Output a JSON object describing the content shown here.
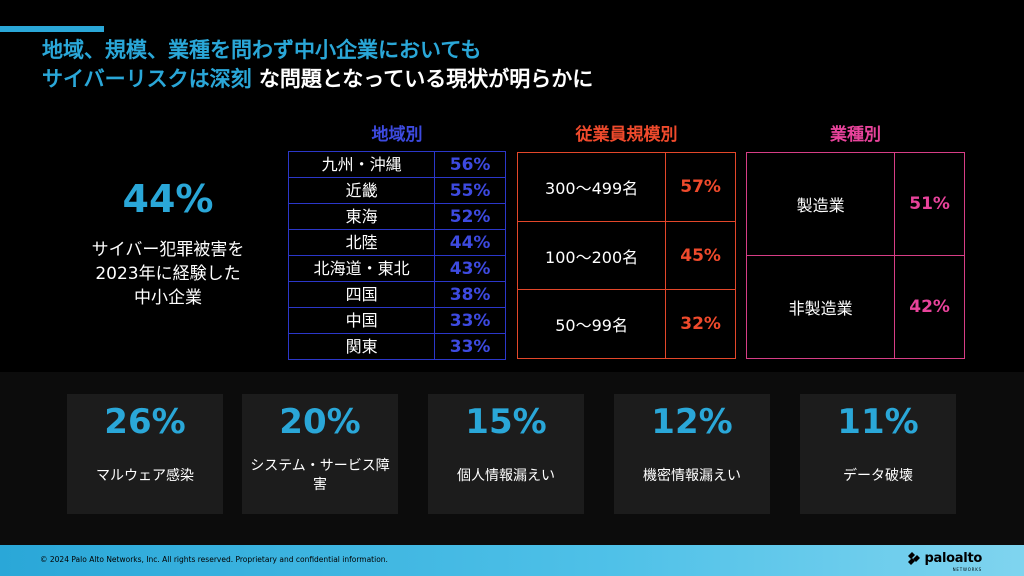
{
  "title": {
    "line1": "地域、規模、業種を問わず中小企業においても",
    "line2_highlight": "サイバーリスクは深刻",
    "line2_rest": " な問題となっている現状が明らかに"
  },
  "headline_stat": {
    "value": "44%",
    "desc1": "サイバー犯罪被害を",
    "desc2": "2023年に経験した",
    "desc3": "中小企業"
  },
  "region": {
    "title": "地域別",
    "rows": [
      {
        "name": "九州・沖縄",
        "value": "56%"
      },
      {
        "name": "近畿",
        "value": "55%"
      },
      {
        "name": "東海",
        "value": "52%"
      },
      {
        "name": "北陸",
        "value": "44%"
      },
      {
        "name": "北海道・東北",
        "value": "43%"
      },
      {
        "name": "四国",
        "value": "38%"
      },
      {
        "name": "中国",
        "value": "33%"
      },
      {
        "name": "関東",
        "value": "33%"
      }
    ]
  },
  "employees": {
    "title": "従業員規模別",
    "rows": [
      {
        "name": "300〜499名",
        "value": "57%"
      },
      {
        "name": "100〜200名",
        "value": "45%"
      },
      {
        "name": "50〜99名",
        "value": "32%"
      }
    ]
  },
  "industry": {
    "title": "業種別",
    "rows": [
      {
        "name": "製造業",
        "value": "51%"
      },
      {
        "name": "非製造業",
        "value": "42%"
      }
    ]
  },
  "damages": [
    {
      "value": "26%",
      "label": "マルウェア感染"
    },
    {
      "value": "20%",
      "label": "システム・サービス障害"
    },
    {
      "value": "15%",
      "label": "個人情報漏えい"
    },
    {
      "value": "12%",
      "label": "機密情報漏えい"
    },
    {
      "value": "11%",
      "label": "データ破壊"
    }
  ],
  "footer": {
    "copyright": "© 2024 Palo Alto Networks, Inc. All rights reserved. Proprietary and confidential information.",
    "logo_text": "paloalto",
    "logo_sub": "NETWORKS"
  },
  "colors": {
    "accent": "#2aa7d8",
    "region": "#3d4ae0",
    "employees": "#ef4a2c",
    "industry": "#e8439b"
  }
}
